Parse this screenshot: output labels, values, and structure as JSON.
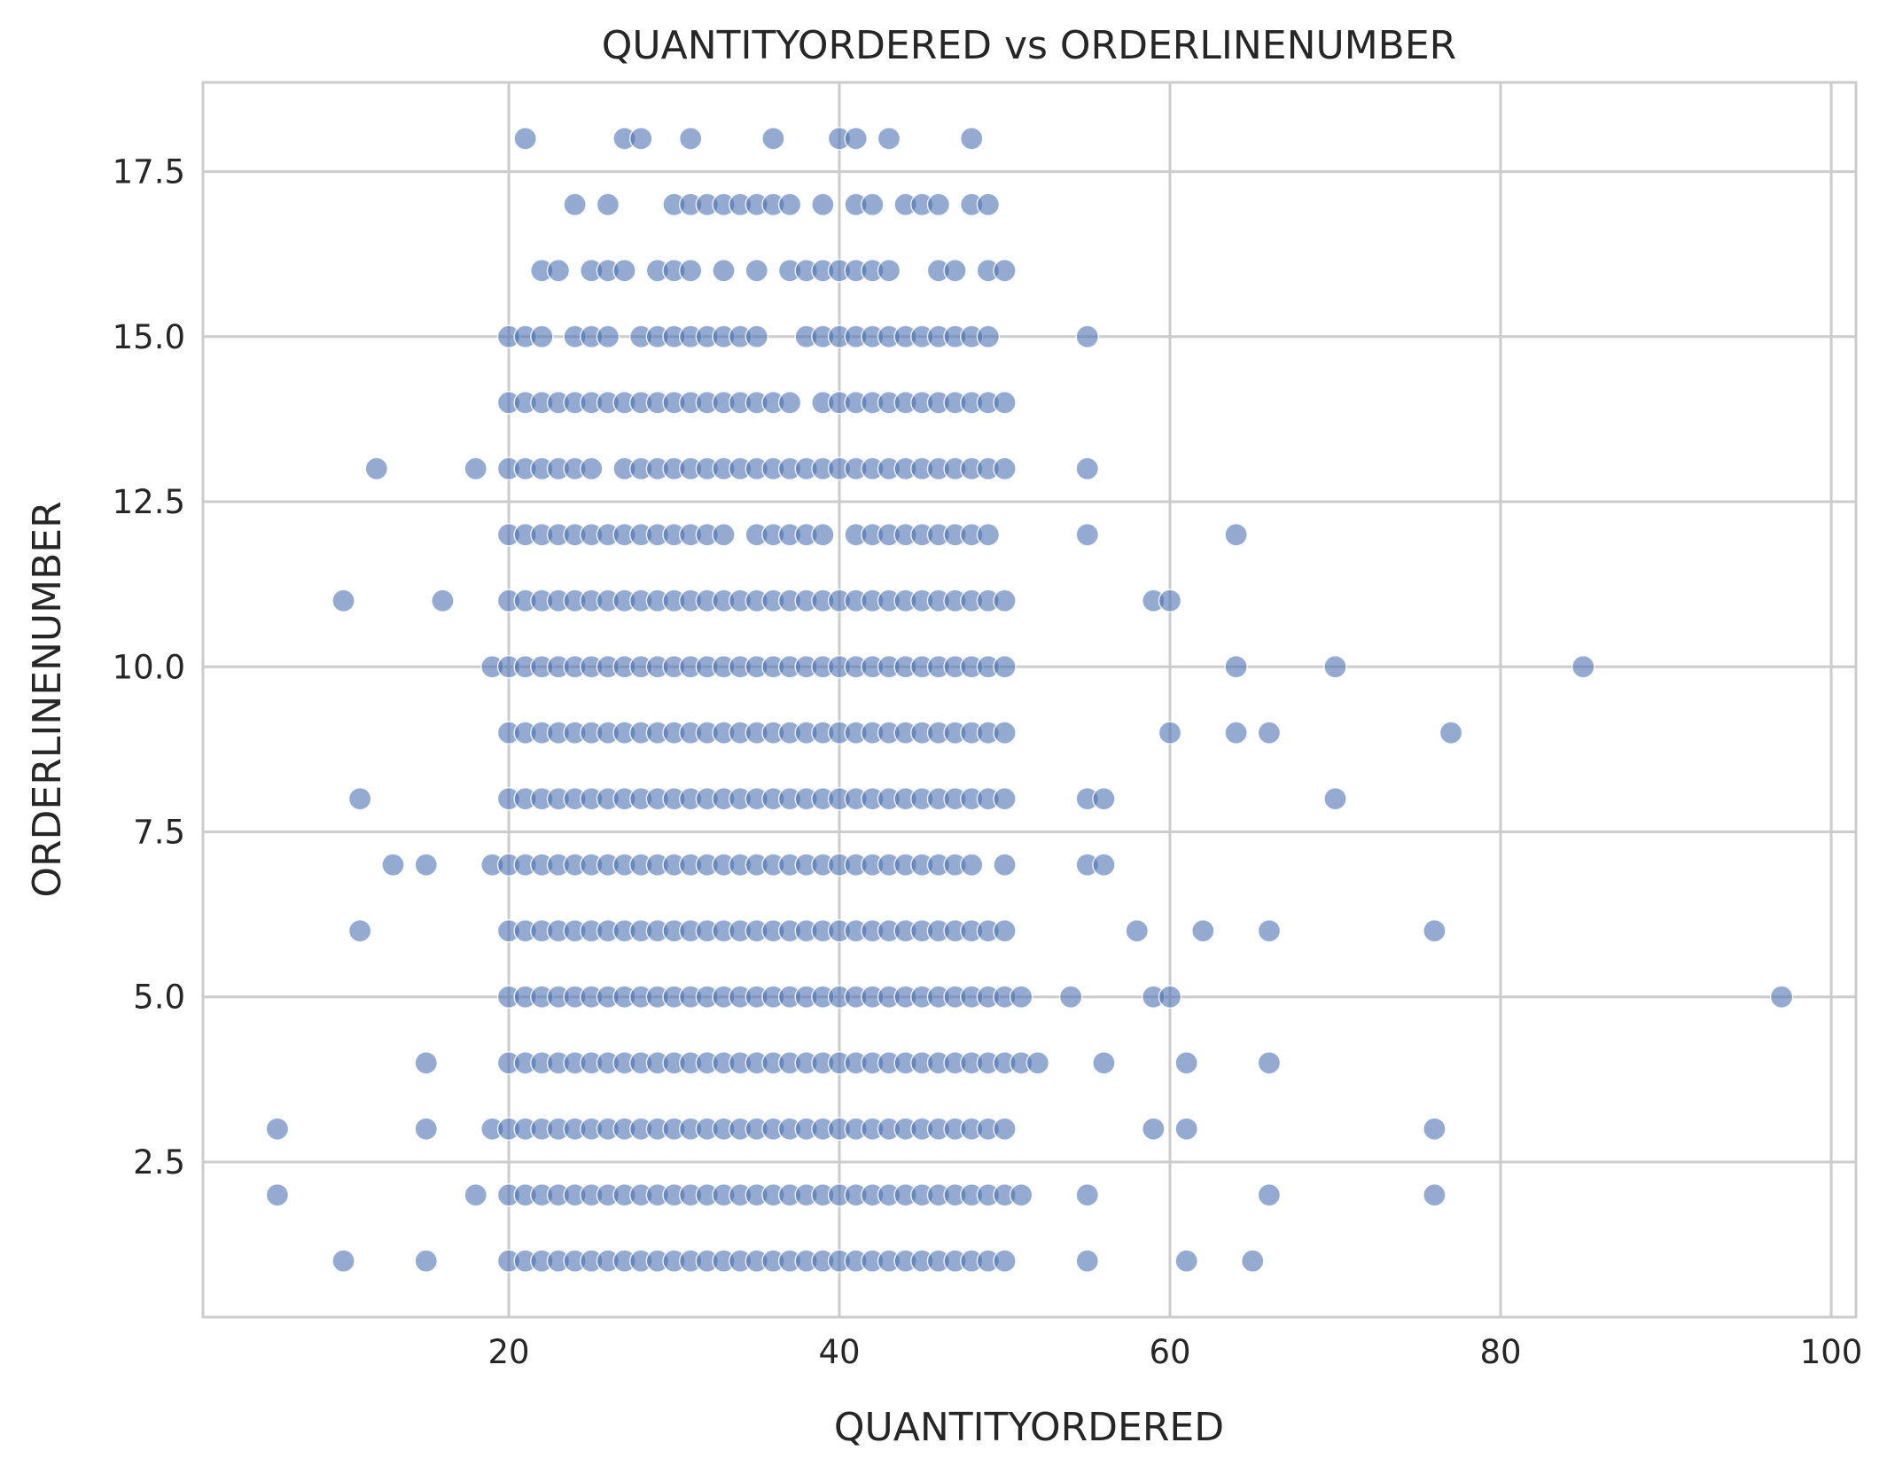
{
  "chart_data": {
    "type": "scatter",
    "title": "QUANTITYORDERED vs ORDERLINENUMBER",
    "xlabel": "QUANTITYORDERED",
    "ylabel": "ORDERLINENUMBER",
    "xlim": [
      1.5,
      101.5
    ],
    "ylim": [
      0.15,
      18.85
    ],
    "xticks": [
      20,
      40,
      60,
      80,
      100
    ],
    "xtick_labels": [
      "20",
      "40",
      "60",
      "80",
      "100"
    ],
    "yticks": [
      2.5,
      5.0,
      7.5,
      10.0,
      12.5,
      15.0,
      17.5
    ],
    "ytick_labels": [
      "2.5",
      "5.0",
      "7.5",
      "10.0",
      "12.5",
      "15.0",
      "17.5"
    ],
    "grid": true,
    "marker_color": "#4c72b0",
    "marker_alpha": 0.6,
    "points": [
      {
        "y": 18,
        "x": [
          21,
          27,
          28,
          31,
          36,
          40,
          41,
          43,
          48
        ]
      },
      {
        "y": 17,
        "x": [
          24,
          26,
          30,
          31,
          32,
          33,
          34,
          35,
          36,
          37,
          39,
          41,
          42,
          44,
          45,
          46,
          48,
          49
        ]
      },
      {
        "y": 16,
        "x": [
          22,
          23,
          25,
          26,
          27,
          29,
          30,
          31,
          33,
          35,
          37,
          38,
          39,
          40,
          41,
          42,
          43,
          46,
          47,
          49,
          50
        ]
      },
      {
        "y": 15,
        "x": [
          20,
          21,
          22,
          24,
          25,
          26,
          28,
          29,
          30,
          31,
          32,
          33,
          34,
          35,
          38,
          39,
          40,
          41,
          42,
          43,
          44,
          45,
          46,
          47,
          48,
          49,
          55
        ]
      },
      {
        "y": 14,
        "x": [
          20,
          21,
          22,
          23,
          24,
          25,
          26,
          27,
          28,
          29,
          30,
          31,
          32,
          33,
          34,
          35,
          36,
          37,
          39,
          40,
          41,
          42,
          43,
          44,
          45,
          46,
          47,
          48,
          49,
          50
        ]
      },
      {
        "y": 13,
        "x": [
          12,
          18,
          20,
          21,
          22,
          23,
          24,
          25,
          27,
          28,
          29,
          30,
          31,
          32,
          33,
          34,
          35,
          36,
          37,
          38,
          39,
          40,
          41,
          42,
          43,
          44,
          45,
          46,
          47,
          48,
          49,
          50,
          55
        ]
      },
      {
        "y": 12,
        "x": [
          20,
          21,
          22,
          23,
          24,
          25,
          26,
          27,
          28,
          29,
          30,
          31,
          32,
          33,
          35,
          36,
          37,
          38,
          39,
          41,
          42,
          43,
          44,
          45,
          46,
          47,
          48,
          49,
          55,
          64
        ]
      },
      {
        "y": 11,
        "x": [
          10,
          16,
          20,
          21,
          22,
          23,
          24,
          25,
          26,
          27,
          28,
          29,
          30,
          31,
          32,
          33,
          34,
          35,
          36,
          37,
          38,
          39,
          40,
          41,
          42,
          43,
          44,
          45,
          46,
          47,
          48,
          49,
          50,
          59,
          60
        ]
      },
      {
        "y": 10,
        "x": [
          19,
          20,
          21,
          22,
          23,
          24,
          25,
          26,
          27,
          28,
          29,
          30,
          31,
          32,
          33,
          34,
          35,
          36,
          37,
          38,
          39,
          40,
          41,
          42,
          43,
          44,
          45,
          46,
          47,
          48,
          49,
          50,
          64,
          70,
          85
        ]
      },
      {
        "y": 9,
        "x": [
          20,
          21,
          22,
          23,
          24,
          25,
          26,
          27,
          28,
          29,
          30,
          31,
          32,
          33,
          34,
          35,
          36,
          37,
          38,
          39,
          40,
          41,
          42,
          43,
          44,
          45,
          46,
          47,
          48,
          49,
          50,
          60,
          64,
          66,
          77
        ]
      },
      {
        "y": 8,
        "x": [
          11,
          20,
          21,
          22,
          23,
          24,
          25,
          26,
          27,
          28,
          29,
          30,
          31,
          32,
          33,
          34,
          35,
          36,
          37,
          38,
          39,
          40,
          41,
          42,
          43,
          44,
          45,
          46,
          47,
          48,
          49,
          50,
          55,
          56,
          70
        ]
      },
      {
        "y": 7,
        "x": [
          13,
          15,
          19,
          20,
          21,
          22,
          23,
          24,
          25,
          26,
          27,
          28,
          29,
          30,
          31,
          32,
          33,
          34,
          35,
          36,
          37,
          38,
          39,
          40,
          41,
          42,
          43,
          44,
          45,
          46,
          47,
          48,
          50,
          55,
          56
        ]
      },
      {
        "y": 6,
        "x": [
          11,
          20,
          21,
          22,
          23,
          24,
          25,
          26,
          27,
          28,
          29,
          30,
          31,
          32,
          33,
          34,
          35,
          36,
          37,
          38,
          39,
          40,
          41,
          42,
          43,
          44,
          45,
          46,
          47,
          48,
          49,
          50,
          58,
          62,
          66,
          76
        ]
      },
      {
        "y": 5,
        "x": [
          20,
          21,
          22,
          23,
          24,
          25,
          26,
          27,
          28,
          29,
          30,
          31,
          32,
          33,
          34,
          35,
          36,
          37,
          38,
          39,
          40,
          41,
          42,
          43,
          44,
          45,
          46,
          47,
          48,
          49,
          50,
          51,
          54,
          59,
          60,
          97
        ]
      },
      {
        "y": 4,
        "x": [
          15,
          20,
          21,
          22,
          23,
          24,
          25,
          26,
          27,
          28,
          29,
          30,
          31,
          32,
          33,
          34,
          35,
          36,
          37,
          38,
          39,
          40,
          41,
          42,
          43,
          44,
          45,
          46,
          47,
          48,
          49,
          50,
          51,
          52,
          56,
          61,
          66
        ]
      },
      {
        "y": 3,
        "x": [
          6,
          15,
          19,
          20,
          21,
          22,
          23,
          24,
          25,
          26,
          27,
          28,
          29,
          30,
          31,
          32,
          33,
          34,
          35,
          36,
          37,
          38,
          39,
          40,
          41,
          42,
          43,
          44,
          45,
          46,
          47,
          48,
          49,
          50,
          59,
          61,
          76
        ]
      },
      {
        "y": 2,
        "x": [
          6,
          18,
          20,
          21,
          22,
          23,
          24,
          25,
          26,
          27,
          28,
          29,
          30,
          31,
          32,
          33,
          34,
          35,
          36,
          37,
          38,
          39,
          40,
          41,
          42,
          43,
          44,
          45,
          46,
          47,
          48,
          49,
          50,
          51,
          55,
          66,
          76
        ]
      },
      {
        "y": 1,
        "x": [
          10,
          15,
          20,
          21,
          22,
          23,
          24,
          25,
          26,
          27,
          28,
          29,
          30,
          31,
          32,
          33,
          34,
          35,
          36,
          37,
          38,
          39,
          40,
          41,
          42,
          43,
          44,
          45,
          46,
          47,
          48,
          49,
          50,
          55,
          61,
          65
        ]
      }
    ]
  }
}
